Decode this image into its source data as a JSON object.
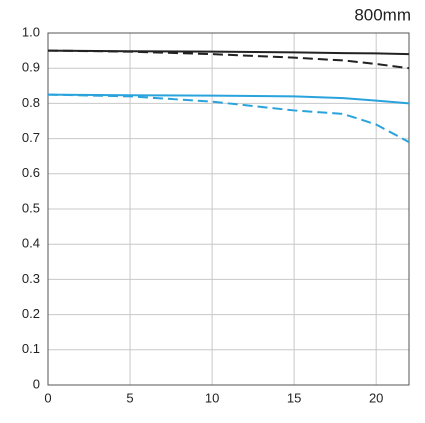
{
  "chart_data": {
    "type": "line",
    "title": "800mm",
    "x": [
      0,
      5,
      10,
      15,
      18,
      20,
      22
    ],
    "series": [
      {
        "color": "#222222",
        "dashed": false,
        "values": [
          0.95,
          0.948,
          0.947,
          0.945,
          0.943,
          0.942,
          0.94
        ]
      },
      {
        "color": "#222222",
        "dashed": true,
        "values": [
          0.95,
          0.947,
          0.94,
          0.93,
          0.922,
          0.912,
          0.9
        ]
      },
      {
        "color": "#2aa3dc",
        "dashed": false,
        "values": [
          0.825,
          0.823,
          0.822,
          0.82,
          0.815,
          0.808,
          0.8
        ]
      },
      {
        "color": "#2aa3dc",
        "dashed": true,
        "values": [
          0.825,
          0.82,
          0.805,
          0.78,
          0.77,
          0.74,
          0.69
        ]
      }
    ],
    "xlim": [
      0,
      22
    ],
    "xticks": [
      0,
      5,
      10,
      15,
      20
    ],
    "ylim": [
      0,
      1
    ],
    "yticks": [
      0,
      0.1,
      0.2,
      0.3,
      0.4,
      0.5,
      0.6,
      0.7,
      0.8,
      0.9,
      {
        "value": 1,
        "label": "1.0"
      }
    ],
    "grid": true
  }
}
